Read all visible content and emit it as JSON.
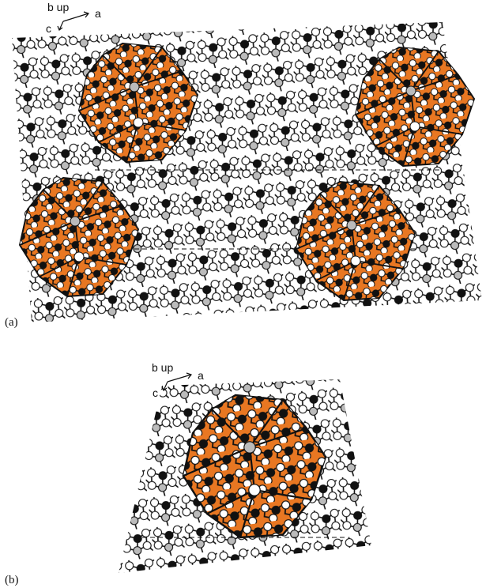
{
  "panel_a": {
    "label": "(a)",
    "axes": {
      "up": "b up",
      "right": "a",
      "down": "c"
    }
  },
  "panel_b": {
    "label": "(b)",
    "axes": {
      "up": "b up",
      "right": "a",
      "down": "c"
    }
  }
}
